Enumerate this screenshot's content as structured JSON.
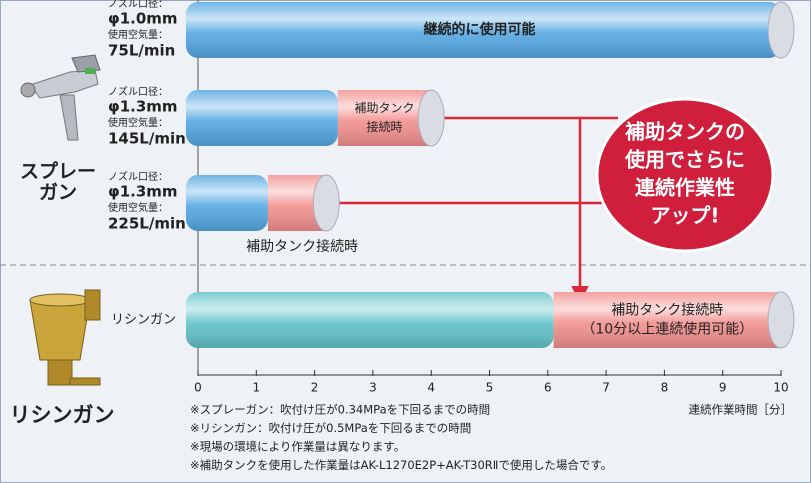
{
  "chart_data": {
    "type": "bar",
    "orientation": "horizontal",
    "stacked": true,
    "x_label": "連続作業時間［分］",
    "xlim": [
      0,
      10
    ],
    "xticks": [
      0,
      1,
      2,
      3,
      4,
      5,
      6,
      7,
      8,
      9,
      10
    ],
    "categories": [
      "75L/min",
      "145L/min",
      "225L/min",
      "リシンガン"
    ],
    "nozzle_label": "ノズル口径：",
    "air_label": "使用空気量：",
    "nozzle_diameters": [
      "φ1.0mm",
      "φ1.3mm",
      "φ1.3mm",
      null
    ],
    "series": [
      {
        "colors": [
          "#55a8e2",
          "#55a8e2",
          "#55a8e2",
          "#62c4c8"
        ],
        "values": [
          10,
          2.4,
          1.2,
          6.1
        ]
      },
      {
        "color": "#f2918f",
        "values": [
          null,
          1.6,
          1.0,
          3.9
        ]
      }
    ],
    "bar_labels": [
      [
        "継続的に使用可能"
      ],
      [
        "補助タンク",
        "接続時"
      ],
      [
        "補助タンク接続時"
      ],
      [
        "補助タンク接続時",
        "（10分以上連続使用可能）"
      ]
    ],
    "group_labels": {
      "spray": [
        "スプレー",
        "ガン"
      ],
      "lysin": "リシンガン"
    },
    "callout": [
      "補助タンクの",
      "使用でさらに",
      "連続作業性",
      "アップ!"
    ],
    "notes": [
      "※スプレーガン：吹付け圧が0.34MPaを下回るまでの時間",
      "※リシンガン：吹付け圧が0.5MPaを下回るまでの時間",
      "※現場の環境により作業量は異なります。",
      "※補助タンクを使用した作業量はAK-L1270E2P+AK-T30RⅡで使用した場合です。"
    ]
  }
}
